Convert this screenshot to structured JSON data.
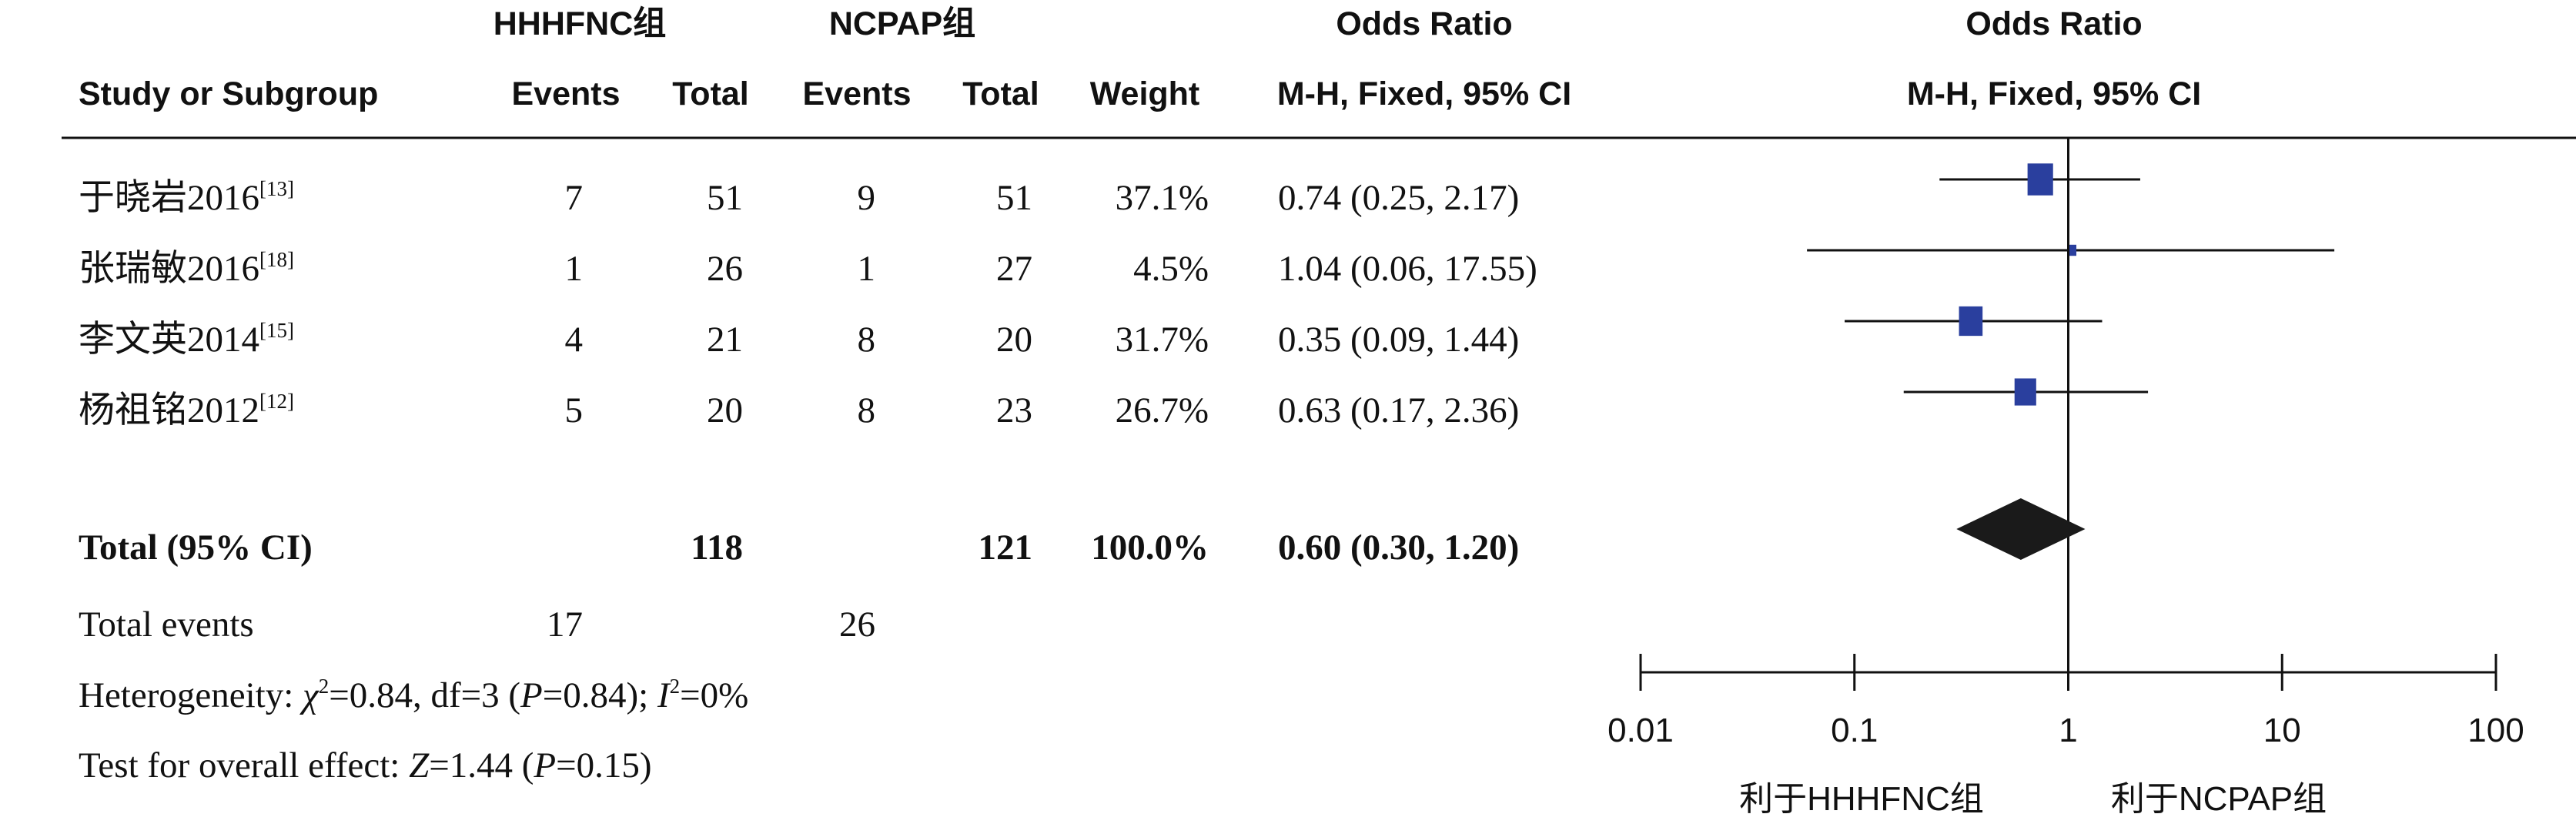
{
  "chart_data": {
    "type": "forest",
    "headers": {
      "group1": "HHHFNC组",
      "group2": "NCPAP组",
      "study": "Study or Subgroup",
      "events": "Events",
      "total": "Total",
      "weight": "Weight",
      "or_title": "Odds Ratio",
      "or_method": "M-H, Fixed, 95% CI"
    },
    "studies": [
      {
        "name": "于晓岩2016",
        "ref": "[13]",
        "e1": "7",
        "t1": "51",
        "e2": "9",
        "t2": "51",
        "weight": "37.1%",
        "ci_text": "0.74 (0.25, 2.17)",
        "or": 0.74,
        "lo": 0.25,
        "hi": 2.17,
        "w": 37.1
      },
      {
        "name": "张瑞敏2016",
        "ref": "[18]",
        "e1": "1",
        "t1": "26",
        "e2": "1",
        "t2": "27",
        "weight": "4.5%",
        "ci_text": "1.04 (0.06, 17.55)",
        "or": 1.04,
        "lo": 0.06,
        "hi": 17.55,
        "w": 4.5
      },
      {
        "name": "李文英2014",
        "ref": "[15]",
        "e1": "4",
        "t1": "21",
        "e2": "8",
        "t2": "20",
        "weight": "31.7%",
        "ci_text": "0.35 (0.09, 1.44)",
        "or": 0.35,
        "lo": 0.09,
        "hi": 1.44,
        "w": 31.7
      },
      {
        "name": "杨祖铭2012",
        "ref": "[12]",
        "e1": "5",
        "t1": "20",
        "e2": "8",
        "t2": "23",
        "weight": "26.7%",
        "ci_text": "0.63 (0.17, 2.36)",
        "or": 0.63,
        "lo": 0.17,
        "hi": 2.36,
        "w": 26.7
      }
    ],
    "total": {
      "label": "Total (95% CI)",
      "t1": "118",
      "t2": "121",
      "weight": "100.0%",
      "ci_text": "0.60 (0.30, 1.20)",
      "or": 0.6,
      "lo": 0.3,
      "hi": 1.2
    },
    "total_events": {
      "label": "Total events",
      "e1": "17",
      "e2": "26"
    },
    "heterogeneity": {
      "prefix": "Heterogeneity: ",
      "chi": "χ",
      "chi_sup": "2",
      "chi_val": "=0.84, df=3 (",
      "p1": "P",
      "p1_val": "=0.84); ",
      "i": "I",
      "i_sup": "2",
      "i_val": "=0%"
    },
    "overall_effect": {
      "prefix": "Test for overall effect: ",
      "z": "Z",
      "z_val": "=1.44 (",
      "p": "P",
      "p_val": "=0.15)"
    },
    "x_axis": {
      "scale": "log",
      "ticks": [
        0.01,
        0.1,
        1,
        10,
        100
      ],
      "tick_labels": [
        "0.01",
        "0.1",
        "1",
        "10",
        "100"
      ]
    },
    "favours": {
      "left": "利于HHHFNC组",
      "right": "利于NCPAP组"
    },
    "colors": {
      "marker": "#2a3f9e",
      "diamond": "#1a1a1a",
      "line": "#111111"
    }
  }
}
